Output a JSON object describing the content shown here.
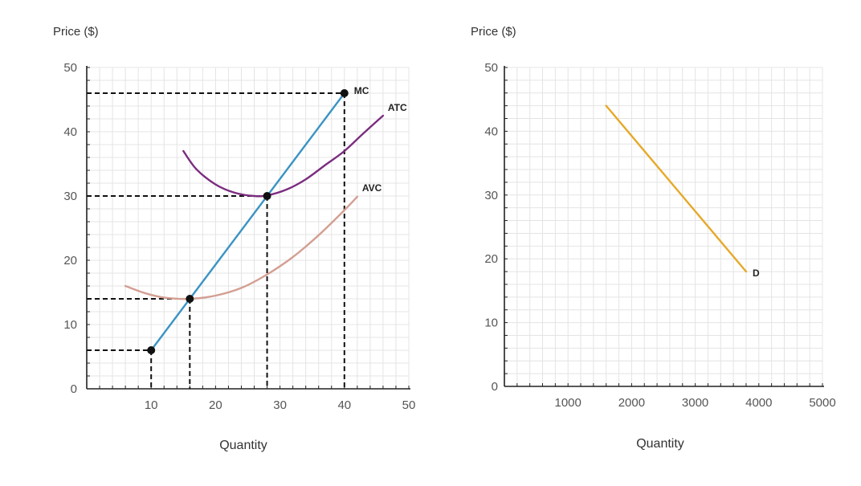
{
  "chart_data": [
    {
      "type": "line",
      "ylabel": "Price ($)",
      "xlabel": "Quantity",
      "xlim": [
        0,
        50
      ],
      "ylim": [
        0,
        50
      ],
      "x_ticks": [
        "10",
        "20",
        "30",
        "40",
        "50"
      ],
      "y_ticks": [
        "0",
        "10",
        "20",
        "30",
        "40",
        "50"
      ],
      "grid": true,
      "series": [
        {
          "name": "MC",
          "color": "#3b93c4",
          "points": [
            [
              10,
              6
            ],
            [
              16,
              14
            ],
            [
              28,
              30
            ],
            [
              40,
              46
            ]
          ]
        },
        {
          "name": "ATC",
          "color": "#7b2d7f",
          "points": [
            [
              15,
              37
            ],
            [
              17,
              34.2
            ],
            [
              20,
              31.8
            ],
            [
              23,
              30.5
            ],
            [
              26,
              30.0
            ],
            [
              28,
              30.1
            ],
            [
              31,
              31.0
            ],
            [
              34,
              32.6
            ],
            [
              37,
              34.8
            ],
            [
              40,
              37.0
            ],
            [
              43,
              39.8
            ],
            [
              46,
              42.5
            ]
          ]
        },
        {
          "name": "AVC",
          "color": "#d39f93",
          "points": [
            [
              6,
              16
            ],
            [
              9,
              14.9
            ],
            [
              12,
              14.2
            ],
            [
              16,
              14.0
            ],
            [
              20,
              14.5
            ],
            [
              24,
              15.7
            ],
            [
              28,
              17.8
            ],
            [
              32,
              20.5
            ],
            [
              36,
              23.9
            ],
            [
              40,
              27.8
            ],
            [
              42,
              29.9
            ]
          ]
        }
      ],
      "markers": [
        [
          10,
          6
        ],
        [
          16,
          14
        ],
        [
          28,
          30
        ],
        [
          40,
          46
        ]
      ],
      "dashed_guides": [
        [
          10,
          6
        ],
        [
          16,
          14
        ],
        [
          28,
          30
        ],
        [
          40,
          46
        ]
      ]
    },
    {
      "type": "line",
      "ylabel": "Price ($)",
      "xlabel": "Quantity",
      "xlim": [
        0,
        5000
      ],
      "ylim": [
        0,
        50
      ],
      "x_ticks": [
        "1000",
        "2000",
        "3000",
        "4000",
        "5000"
      ],
      "y_ticks": [
        "0",
        "10",
        "20",
        "30",
        "40",
        "50"
      ],
      "grid": true,
      "series": [
        {
          "name": "D",
          "color": "#e6a92a",
          "points": [
            [
              1600,
              44
            ],
            [
              3800,
              18
            ]
          ]
        }
      ]
    }
  ]
}
